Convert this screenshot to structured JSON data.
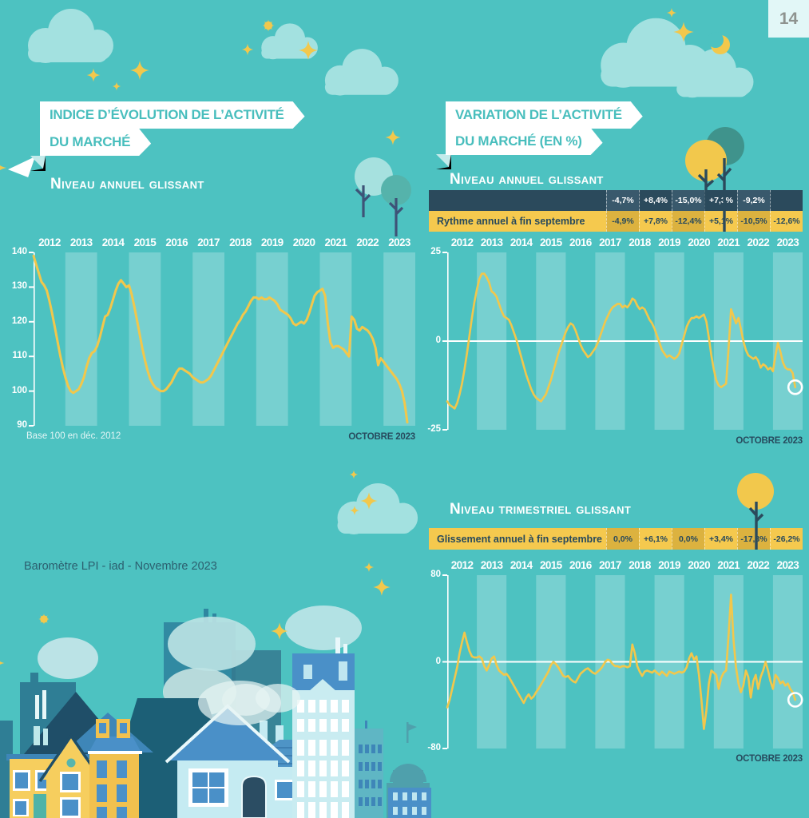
{
  "page": {
    "number": "14",
    "footer_note": "Baromètre LPI - iad - Novembre 2023",
    "colors": {
      "background": "#4DC2C1",
      "accent_yellow": "#F2C74B",
      "navy": "#2B4A5C",
      "banner_text": "#48BEBD",
      "white": "#FFFFFF"
    }
  },
  "left_section": {
    "banner_line1": "INDICE D’ÉVOLUTION DE L’ACTIVITÉ",
    "banner_line2": "DU MARCHÉ",
    "subtitle": "Niveau annuel glissant",
    "footnote": "Base 100 en déc. 2012",
    "date_label": "OCTOBRE 2023"
  },
  "right_section": {
    "banner_line1": "VARIATION DE L’ACTIVITÉ",
    "banner_line2": "DU MARCHÉ (EN %)",
    "annual": {
      "subtitle": "Niveau annuel glissant",
      "table": {
        "row1": {
          "label": "",
          "values": [
            "-4,7%",
            "+8,4%",
            "-15,0%",
            "+7,3%",
            "-9,2%",
            ""
          ]
        },
        "row2": {
          "label": "Rythme annuel à fin septembre",
          "values": [
            "-4,9%",
            "+7,8%",
            "-12,4%",
            "+5,1%",
            "-10,5%",
            "-12,6%"
          ]
        }
      },
      "date_label": "OCTOBRE 2023"
    },
    "quarterly": {
      "subtitle": "Niveau trimestriel glissant",
      "table": {
        "row1": {
          "label": "Glissement annuel à fin septembre",
          "values": [
            "0,0%",
            "+6,1%",
            "0,0%",
            "+3,4%",
            "-17,3%",
            "-26,2%"
          ]
        }
      },
      "date_label": "OCTOBRE 2023"
    }
  },
  "chart_data": [
    {
      "dom_id": "chart-index",
      "type": "line",
      "title": "Indice d'évolution de l'activité du marché — Niveau annuel glissant",
      "note": "Base 100 en déc. 2012",
      "categories": [
        "2012",
        "2013",
        "2014",
        "2015",
        "2016",
        "2017",
        "2018",
        "2019",
        "2020",
        "2021",
        "2022",
        "2023"
      ],
      "x_start": 2012.0,
      "x_step": "month",
      "x_end_label": "OCTOBRE 2023",
      "ylim": [
        90,
        140
      ],
      "yticks": [
        140,
        130,
        120,
        110,
        100,
        90
      ],
      "zero_line": false,
      "end_marker": false,
      "line_color": "#F2C74B",
      "values": [
        139,
        136.5,
        134,
        131.5,
        130.5,
        129,
        126,
        122.5,
        118.5,
        114.5,
        110.5,
        107,
        104,
        101.5,
        100,
        99.5,
        100,
        100.5,
        102,
        104,
        107,
        109.5,
        111,
        111.5,
        113,
        115.5,
        118.5,
        121.5,
        122,
        124,
        126.5,
        129,
        131,
        132,
        131,
        130,
        130.5,
        128,
        124.5,
        120.5,
        116.5,
        112.5,
        109,
        106,
        103.5,
        102,
        101,
        100.5,
        100,
        100,
        100.5,
        101.5,
        102.5,
        104,
        105.5,
        106.5,
        106.5,
        106,
        105.5,
        105,
        104,
        103.5,
        103,
        102.5,
        102.5,
        103,
        103.5,
        104.5,
        106,
        107.5,
        109,
        110.5,
        112,
        113.5,
        115,
        116.5,
        118,
        119.5,
        120.5,
        122,
        123,
        124.5,
        126,
        127,
        127,
        126.5,
        127,
        126.5,
        126.5,
        127,
        126.5,
        126,
        125,
        123.5,
        123,
        122.5,
        122,
        121,
        119.5,
        119,
        119.5,
        120,
        119.5,
        120.5,
        122.5,
        125,
        127.5,
        128.5,
        129,
        129.5,
        127.5,
        119.5,
        114,
        112.5,
        113,
        113,
        112.5,
        112,
        111,
        110,
        121.5,
        120.5,
        118,
        117.5,
        118.5,
        118,
        117.5,
        116.5,
        115,
        112.5,
        107.5,
        109.5,
        108.5,
        107.5,
        106.5,
        105.5,
        104.5,
        103.5,
        102,
        100,
        96.5,
        91
      ]
    },
    {
      "dom_id": "chart-annual",
      "type": "line",
      "title": "Variation de l'activité du marché (en %) — Niveau annuel glissant",
      "categories": [
        "2012",
        "2013",
        "2014",
        "2015",
        "2016",
        "2017",
        "2018",
        "2019",
        "2020",
        "2021",
        "2022",
        "2023"
      ],
      "x_start": 2012.0,
      "x_step": "month",
      "x_end_label": "OCTOBRE 2023",
      "ylim": [
        -25,
        25
      ],
      "yticks": [
        25,
        0,
        -25
      ],
      "zero_line": true,
      "end_marker": true,
      "line_color": "#F2C74B",
      "values": [
        -17,
        -18,
        -18.5,
        -19,
        -17.5,
        -15,
        -12,
        -8,
        -3.5,
        1.5,
        6.5,
        11,
        14.5,
        17.5,
        19,
        19,
        18,
        16.5,
        14,
        13.5,
        12.5,
        10.5,
        8.5,
        7,
        6.5,
        6,
        4.5,
        2.5,
        0.5,
        -2,
        -4.5,
        -7,
        -9.5,
        -11.5,
        -13.5,
        -15,
        -16,
        -16.5,
        -17,
        -16,
        -15,
        -13,
        -11,
        -8.5,
        -6,
        -3.5,
        -1.5,
        0.5,
        2.5,
        4,
        5,
        4.5,
        3,
        1,
        -1,
        -2.5,
        -3.5,
        -4.5,
        -4,
        -3,
        -2,
        -0.5,
        1.5,
        3.5,
        5.5,
        7,
        8.5,
        9.5,
        10,
        10.5,
        10.5,
        9.5,
        10,
        9.5,
        10.5,
        12,
        11.5,
        10,
        9,
        9.5,
        9,
        7.5,
        6,
        5,
        3.5,
        1.5,
        -0.5,
        -2.5,
        -3.5,
        -4.5,
        -4,
        -4.5,
        -5,
        -4.5,
        -3.5,
        -1,
        1.5,
        4,
        5.5,
        6.5,
        6.5,
        7,
        6.5,
        7,
        7.5,
        5.5,
        1,
        -4,
        -8,
        -11,
        -12.5,
        -13,
        -12.5,
        -12,
        -2,
        9,
        7,
        5,
        6.5,
        3.5,
        0,
        -2.5,
        -4,
        -4.5,
        -5,
        -4.5,
        -5.5,
        -7.5,
        -6.5,
        -7,
        -8,
        -7.5,
        -8.5,
        -4,
        -0.5,
        -3,
        -6,
        -7.5,
        -8,
        -8,
        -9,
        -13
      ]
    },
    {
      "dom_id": "chart-quarterly",
      "type": "line",
      "title": "Variation de l'activité du marché (en %) — Niveau trimestriel glissant",
      "categories": [
        "2012",
        "2013",
        "2014",
        "2015",
        "2016",
        "2017",
        "2018",
        "2019",
        "2020",
        "2021",
        "2022",
        "2023"
      ],
      "x_start": 2012.0,
      "x_step": "month",
      "x_end_label": "OCTOBRE 2023",
      "ylim": [
        -80,
        80
      ],
      "yticks": [
        80,
        0,
        -80
      ],
      "zero_line": true,
      "end_marker": true,
      "line_color": "#F2C74B",
      "values": [
        -42,
        -35,
        -25,
        -15,
        -5,
        8,
        18,
        27,
        18,
        10,
        5,
        4,
        4,
        5,
        3,
        -4,
        -8,
        -3,
        3,
        5,
        -3,
        -8,
        -10,
        -12,
        -11,
        -14,
        -18,
        -22,
        -26,
        -30,
        -34,
        -38,
        -33,
        -30,
        -34,
        -32,
        -28,
        -25,
        -21,
        -17,
        -13,
        -9,
        -3,
        0,
        -2,
        -5,
        -9,
        -13,
        -14,
        -13,
        -16,
        -18,
        -19,
        -15,
        -11,
        -9,
        -7,
        -6,
        -8,
        -10,
        -11,
        -9,
        -7,
        -4,
        0,
        2,
        1,
        -2,
        -4,
        -4,
        -5,
        -4,
        -4,
        -5,
        -4,
        16,
        8,
        -4,
        -9,
        -13,
        -9,
        -8,
        -9,
        -10,
        -8,
        -10,
        -12,
        -9,
        -11,
        -13,
        -9,
        -10,
        -11,
        -10,
        -9,
        -10,
        -9,
        -5,
        3,
        8,
        2,
        5,
        -12,
        -35,
        -62,
        -45,
        -20,
        -8,
        -10,
        -12,
        -25,
        -15,
        -10,
        -8,
        25,
        62,
        20,
        -5,
        -20,
        -28,
        -22,
        -8,
        -14,
        -33,
        -18,
        -12,
        -25,
        -14,
        -8,
        0,
        -8,
        -18,
        -25,
        -12,
        -15,
        -20,
        -18,
        -22,
        -20,
        -25,
        -28,
        -35
      ]
    }
  ]
}
